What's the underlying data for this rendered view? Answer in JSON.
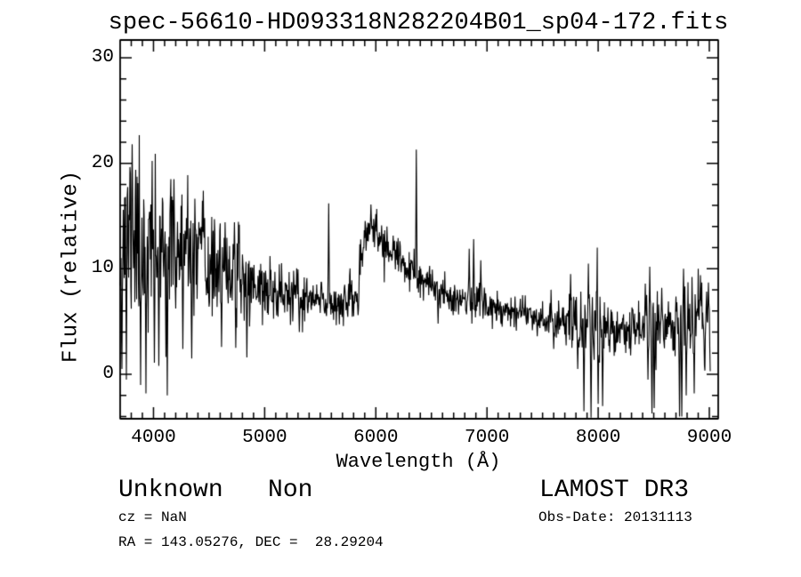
{
  "title": "spec-56610-HD093318N282204B01_sp04-172.fits",
  "annotations": {
    "class_label": "Unknown   Non",
    "cz": "cz = NaN",
    "ra_dec": "RA = 143.05276, DEC =  28.29204",
    "survey": "LAMOST DR3",
    "obs_date": "Obs-Date: 20131113"
  },
  "chart_data": {
    "type": "line",
    "title": "spec-56610-HD093318N282204B01_sp04-172.fits",
    "xlabel": "Wavelength (Å)",
    "ylabel": "Flux (relative)",
    "xlim": [
      3700,
      9080
    ],
    "ylim": [
      -4.21,
      31.68
    ],
    "data_end": 9008,
    "x_ticks": [
      4000,
      5000,
      6000,
      7000,
      8000,
      9000
    ],
    "y_ticks": [
      0,
      10,
      20,
      30
    ],
    "x_minor_tick_interval": 100,
    "y_minor_tick_interval": 2,
    "grid": false,
    "legend": "none",
    "line_color": "#000000",
    "background": "#ffffff",
    "seed": 11,
    "sample_step_angstrom": 4,
    "continuum": [
      [
        3700,
        13.5
      ],
      [
        3800,
        13.5
      ],
      [
        3900,
        12.8
      ],
      [
        4000,
        12.0
      ],
      [
        4100,
        11.8
      ],
      [
        4200,
        11.5
      ],
      [
        4300,
        11.2
      ],
      [
        4400,
        10.6
      ],
      [
        4500,
        10.0
      ],
      [
        4600,
        10.0
      ],
      [
        4700,
        9.6
      ],
      [
        4800,
        9.0
      ],
      [
        4900,
        8.6
      ],
      [
        5000,
        8.0
      ],
      [
        5100,
        7.8
      ],
      [
        5200,
        7.5
      ],
      [
        5300,
        7.2
      ],
      [
        5400,
        7.0
      ],
      [
        5500,
        6.9
      ],
      [
        5600,
        6.8
      ],
      [
        5700,
        6.8
      ],
      [
        5800,
        7.0
      ],
      [
        5850,
        8.0
      ],
      [
        5900,
        13.0
      ],
      [
        5950,
        14.5
      ],
      [
        6000,
        13.5
      ],
      [
        6050,
        12.5
      ],
      [
        6100,
        12.0
      ],
      [
        6150,
        11.5
      ],
      [
        6200,
        11.0
      ],
      [
        6250,
        10.5
      ],
      [
        6300,
        9.8
      ],
      [
        6350,
        9.2
      ],
      [
        6400,
        8.8
      ],
      [
        6500,
        8.3
      ],
      [
        6600,
        7.8
      ],
      [
        6700,
        7.4
      ],
      [
        6800,
        7.1
      ],
      [
        6900,
        7.0
      ],
      [
        7000,
        6.6
      ],
      [
        7100,
        6.3
      ],
      [
        7200,
        6.2
      ],
      [
        7300,
        6.0
      ],
      [
        7400,
        5.7
      ],
      [
        7500,
        5.4
      ],
      [
        7600,
        5.2
      ],
      [
        7700,
        5.2
      ],
      [
        7800,
        4.8
      ],
      [
        7900,
        4.5
      ],
      [
        8000,
        4.4
      ],
      [
        8100,
        4.3
      ],
      [
        8200,
        4.3
      ],
      [
        8300,
        4.4
      ],
      [
        8400,
        4.5
      ],
      [
        8500,
        4.4
      ],
      [
        8600,
        4.8
      ],
      [
        8700,
        4.8
      ],
      [
        8800,
        5.0
      ],
      [
        8900,
        5.2
      ],
      [
        9000,
        5.0
      ],
      [
        9008,
        4.6
      ]
    ],
    "noise_sigma": [
      [
        3700,
        4.5
      ],
      [
        3800,
        4.5
      ],
      [
        3900,
        4.2
      ],
      [
        4000,
        4.0
      ],
      [
        4100,
        3.6
      ],
      [
        4200,
        3.2
      ],
      [
        4300,
        2.9
      ],
      [
        4400,
        2.6
      ],
      [
        4500,
        2.3
      ],
      [
        4700,
        1.9
      ],
      [
        4900,
        1.6
      ],
      [
        5100,
        1.4
      ],
      [
        5300,
        1.3
      ],
      [
        5500,
        1.1
      ],
      [
        5700,
        1.0
      ],
      [
        5900,
        1.1
      ],
      [
        6100,
        1.0
      ],
      [
        6300,
        0.9
      ],
      [
        6500,
        0.8
      ],
      [
        6700,
        0.8
      ],
      [
        6900,
        0.9
      ],
      [
        7100,
        0.8
      ],
      [
        7300,
        0.8
      ],
      [
        7500,
        0.8
      ],
      [
        7700,
        1.0
      ],
      [
        7800,
        2.2
      ],
      [
        7900,
        2.6
      ],
      [
        8000,
        2.4
      ],
      [
        8100,
        1.3
      ],
      [
        8200,
        1.0
      ],
      [
        8300,
        1.0
      ],
      [
        8400,
        1.8
      ],
      [
        8500,
        1.9
      ],
      [
        8600,
        1.2
      ],
      [
        8700,
        2.0
      ],
      [
        8800,
        1.9
      ],
      [
        8900,
        1.9
      ],
      [
        9000,
        1.8
      ],
      [
        9008,
        1.5
      ]
    ],
    "emission_spikes": [
      [
        3808,
        21.8
      ],
      [
        4184,
        18.5
      ],
      [
        4448,
        17.4
      ],
      [
        4728,
        14.4
      ],
      [
        5577,
        16.2
      ],
      [
        6363,
        21.3
      ],
      [
        6840,
        11.9
      ],
      [
        6880,
        12.8
      ],
      [
        6944,
        10.8
      ],
      [
        7752,
        9.5
      ],
      [
        7912,
        10.5
      ],
      [
        7992,
        12.0
      ],
      [
        8424,
        8.6
      ],
      [
        8464,
        10.2
      ],
      [
        8572,
        8.2
      ],
      [
        8768,
        10.0
      ],
      [
        8920,
        9.4
      ],
      [
        8990,
        8.7
      ]
    ],
    "absorption_dips": [
      [
        3716,
        0.5
      ],
      [
        3755,
        -0.5
      ],
      [
        3884,
        -1.0
      ],
      [
        3930,
        -1.8
      ],
      [
        4008,
        1.1
      ],
      [
        4048,
        0.8
      ],
      [
        4124,
        -2.0
      ],
      [
        4265,
        2.4
      ],
      [
        4344,
        1.5
      ],
      [
        4610,
        2.6
      ],
      [
        4740,
        2.5
      ],
      [
        4840,
        1.6
      ],
      [
        5310,
        4.0
      ],
      [
        6560,
        4.8
      ],
      [
        7450,
        3.6
      ],
      [
        7600,
        2.4
      ],
      [
        7816,
        0.5
      ],
      [
        7872,
        -3.5
      ],
      [
        7936,
        -4.1
      ],
      [
        8000,
        -2.8
      ],
      [
        8040,
        -3.0
      ],
      [
        8290,
        1.8
      ],
      [
        8448,
        -0.5
      ],
      [
        8484,
        -3.7
      ],
      [
        8504,
        -3.2
      ],
      [
        8730,
        -4.0
      ],
      [
        8752,
        -4.0
      ],
      [
        8792,
        -2.0
      ],
      [
        8864,
        -1.8
      ],
      [
        8956,
        0.8
      ],
      [
        9008,
        0.3
      ]
    ]
  }
}
